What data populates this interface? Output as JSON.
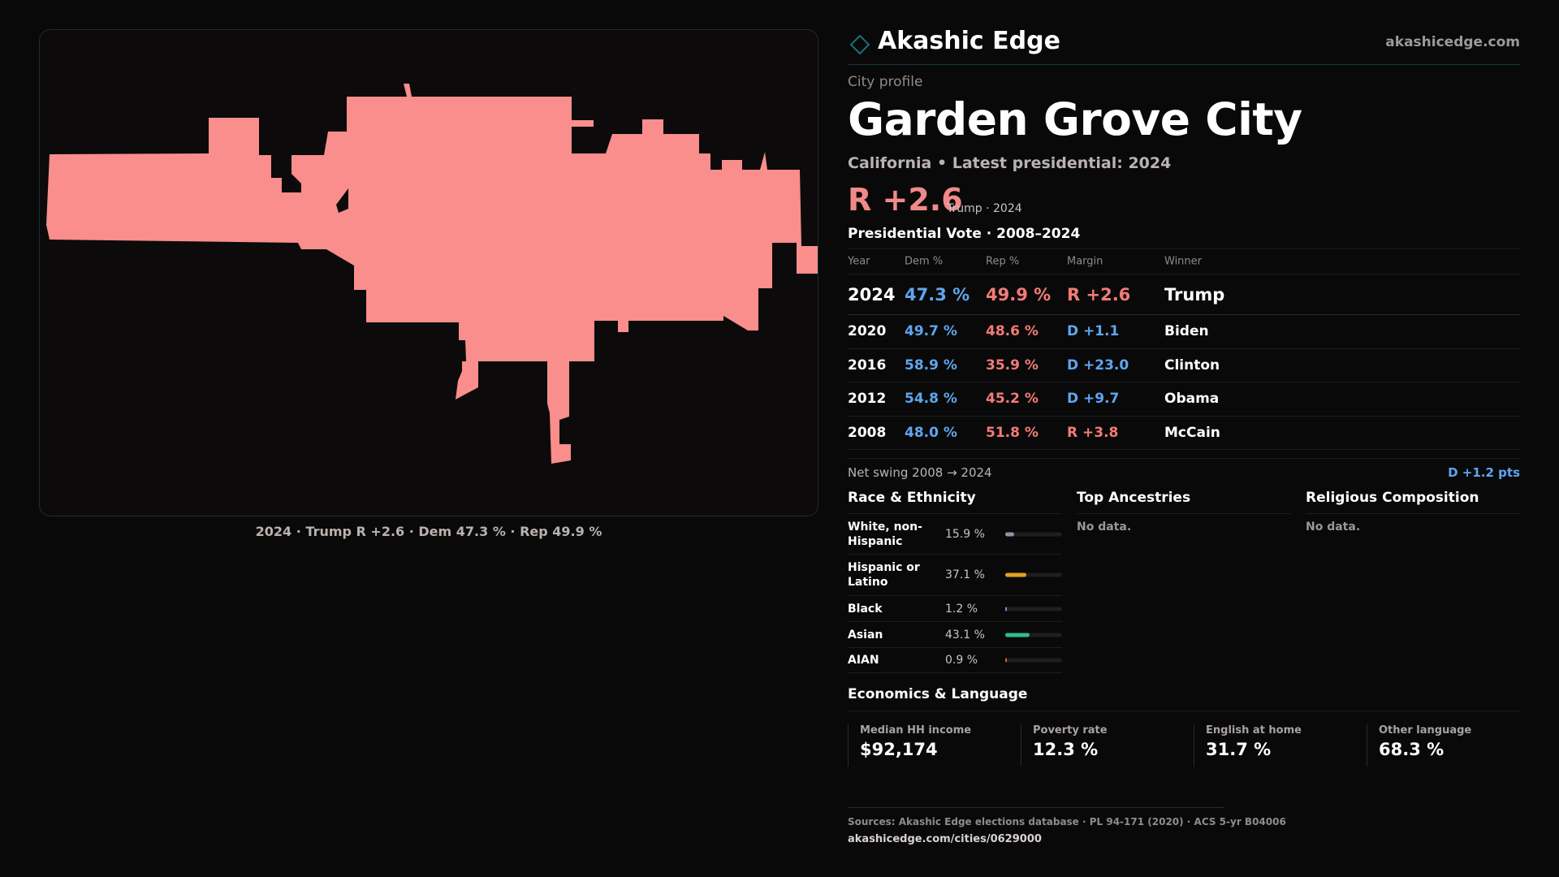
{
  "map": {
    "fill_color": "#f98e8c",
    "caption": "2024 · Trump R +2.6 · Dem 47.3 % · Rep 49.9 %"
  },
  "brand": {
    "name": "Akashic Edge",
    "url": "akashicedge.com",
    "logo_icon": "diamond-outline-icon",
    "accent_color": "#1d6f78"
  },
  "profile": {
    "eyebrow": "City profile",
    "title": "Garden Grove City",
    "subtitle": "California • Latest presidential: 2024",
    "lead_margin": "R +2.6",
    "lead_note": "Trump · 2024"
  },
  "presidential": {
    "section_title": "Presidential Vote · 2008–2024",
    "headers": {
      "year": "Year",
      "dem": "Dem %",
      "rep": "Rep %",
      "margin": "Margin",
      "winner": "Winner"
    },
    "rows": [
      {
        "year": "2024",
        "dem": "47.3 %",
        "rep": "49.9 %",
        "margin": "R +2.6",
        "margin_party": "rep",
        "winner": "Trump"
      },
      {
        "year": "2020",
        "dem": "49.7 %",
        "rep": "48.6 %",
        "margin": "D +1.1",
        "margin_party": "dem",
        "winner": "Biden"
      },
      {
        "year": "2016",
        "dem": "58.9 %",
        "rep": "35.9 %",
        "margin": "D +23.0",
        "margin_party": "dem",
        "winner": "Clinton"
      },
      {
        "year": "2012",
        "dem": "54.8 %",
        "rep": "45.2 %",
        "margin": "D +9.7",
        "margin_party": "dem",
        "winner": "Obama"
      },
      {
        "year": "2008",
        "dem": "48.0 %",
        "rep": "51.8 %",
        "margin": "R +3.8",
        "margin_party": "rep",
        "winner": "McCain"
      }
    ],
    "swing_label": "Net swing 2008 → 2024",
    "swing_value": "D +1.2 pts"
  },
  "race": {
    "section_title": "Race & Ethnicity",
    "rows": [
      {
        "label": "White, non-Hispanic",
        "pct_text": "15.9 %",
        "pct": 15.9,
        "color": "#8a96a8"
      },
      {
        "label": "Hispanic or Latino",
        "pct_text": "37.1 %",
        "pct": 37.1,
        "color": "#e0a21e"
      },
      {
        "label": "Black",
        "pct_text": "1.2 %",
        "pct": 1.2,
        "color": "#9b7fd6"
      },
      {
        "label": "Asian",
        "pct_text": "43.1 %",
        "pct": 43.1,
        "color": "#2fbf8c"
      },
      {
        "label": "AIAN",
        "pct_text": "0.9 %",
        "pct": 0.9,
        "color": "#d0603a"
      }
    ]
  },
  "ancestries": {
    "section_title": "Top Ancestries",
    "empty": "No data."
  },
  "religion": {
    "section_title": "Religious Composition",
    "empty": "No data."
  },
  "economics": {
    "section_title": "Economics & Language",
    "cards": [
      {
        "label": "Median HH income",
        "value": "$92,174"
      },
      {
        "label": "Poverty rate",
        "value": "12.3 %"
      },
      {
        "label": "English at home",
        "value": "31.7 %"
      },
      {
        "label": "Other language",
        "value": "68.3 %"
      }
    ]
  },
  "sources": {
    "text": "Sources: Akashic Edge elections database · PL 94-171 (2020) · ACS 5-yr B04006",
    "url": "akashicedge.com/cities/0629000"
  }
}
